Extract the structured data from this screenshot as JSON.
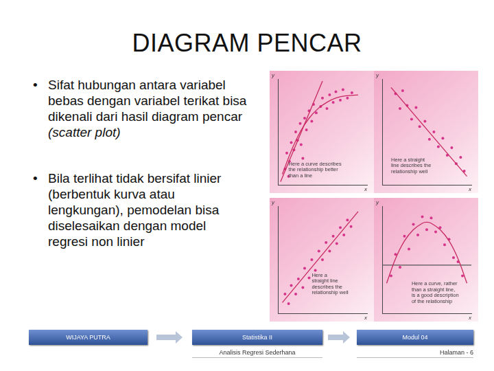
{
  "title": "DIAGRAM PENCAR",
  "bullets": [
    [
      {
        "text": "Sifat hubungan antara variabel bebas dengan variabel terikat bisa dikenali dari hasil diagram pencar ",
        "italic": false
      },
      {
        "text": "(scatter plot)",
        "italic": true
      }
    ],
    [
      {
        "text": "Bila terlihat tidak bersifat linier (berbentuk kurva atau lengkungan), pemodelan bisa diselesaikan dengan model regresi non linier",
        "italic": false
      }
    ]
  ],
  "footer": {
    "boxes": [
      "WIJAYA PUTRA",
      "Statistika II",
      "Modul 04"
    ],
    "subtitles": [
      "Analisis Regresi Sederhana",
      "Halaman - 6"
    ]
  },
  "chart_data": [
    {
      "type": "scatter",
      "xlabel": "x",
      "ylabel": "y",
      "annotation": [
        "Here a curve describes",
        "the relationship better",
        "than a line"
      ],
      "xlim": [
        0,
        10
      ],
      "ylim": [
        0,
        10
      ],
      "grid": false,
      "tick_labels": false,
      "series": [
        {
          "type": "scatter",
          "marker": "circle",
          "color": "#d6338a",
          "x": [
            0.8,
            1.0,
            1.3,
            1.5,
            1.8,
            2.0,
            2.2,
            2.5,
            2.6,
            3.0,
            3.2,
            3.5,
            3.8,
            4.0,
            4.3,
            4.8,
            5.0,
            5.5,
            5.8,
            6.2,
            6.5,
            7.0,
            7.3,
            7.8,
            8.3,
            1.2,
            2.8
          ],
          "values": [
            1.5,
            3.0,
            2.2,
            4.0,
            3.3,
            5.0,
            4.2,
            5.8,
            3.8,
            6.3,
            5.2,
            7.0,
            6.0,
            7.6,
            6.8,
            7.4,
            8.2,
            7.2,
            8.5,
            7.8,
            8.8,
            8.0,
            9.0,
            8.2,
            8.7,
            0.8,
            2.5
          ]
        },
        {
          "type": "line",
          "line_style": "solid",
          "color": "#c8285f",
          "x": [
            0.3,
            5.0
          ],
          "values": [
            0.3,
            9.8
          ]
        },
        {
          "type": "curve",
          "line_style": "solid",
          "color": "#c8285f",
          "x": [
            0.5,
            1.5,
            2.5,
            3.5,
            4.5,
            5.5,
            6.5,
            7.5,
            9.0
          ],
          "values": [
            1.0,
            3.2,
            5.0,
            6.3,
            7.2,
            7.8,
            8.2,
            8.4,
            8.5
          ]
        }
      ]
    },
    {
      "type": "scatter",
      "xlabel": "x",
      "ylabel": "y",
      "annotation": [
        "Here a straight",
        "line describes the",
        "relationship well"
      ],
      "xlim": [
        0,
        10
      ],
      "ylim": [
        0,
        10
      ],
      "grid": false,
      "tick_labels": false,
      "series": [
        {
          "type": "scatter",
          "marker": "circle",
          "color": "#d6338a",
          "x": [
            1.5,
            2.0,
            2.3,
            2.8,
            3.3,
            3.8,
            4.2,
            4.8,
            5.3,
            5.8,
            6.3,
            6.8,
            7.3,
            7.8,
            8.3,
            8.8,
            9.2
          ],
          "values": [
            8.6,
            7.2,
            8.9,
            7.5,
            6.2,
            7.3,
            5.5,
            6.0,
            4.3,
            5.0,
            3.6,
            4.4,
            2.8,
            3.5,
            2.0,
            2.6,
            1.3
          ]
        },
        {
          "type": "line",
          "line_style": "solid",
          "color": "#c8285f",
          "x": [
            1.0,
            9.5
          ],
          "values": [
            9.2,
            0.8
          ]
        }
      ]
    },
    {
      "type": "scatter",
      "xlabel": "x",
      "ylabel": "y",
      "annotation": [
        "Here a",
        "straight line",
        "describes the",
        "relationship well"
      ],
      "xlim": [
        0,
        10
      ],
      "ylim": [
        0,
        10
      ],
      "grid": false,
      "tick_labels": false,
      "series": [
        {
          "type": "scatter",
          "marker": "circle",
          "color": "#d6338a",
          "x": [
            0.8,
            1.2,
            1.5,
            2.0,
            2.3,
            2.8,
            3.0,
            3.5,
            3.8,
            4.2,
            4.6,
            5.0,
            5.4,
            5.8,
            6.2,
            6.6,
            7.0,
            7.4,
            7.8,
            8.2
          ],
          "values": [
            1.8,
            0.9,
            2.6,
            1.8,
            3.2,
            2.4,
            4.2,
            3.3,
            5.0,
            4.0,
            5.8,
            5.0,
            6.6,
            5.8,
            7.2,
            6.5,
            8.0,
            7.3,
            8.7,
            8.1
          ]
        },
        {
          "type": "line",
          "line_style": "solid",
          "color": "#c8285f",
          "x": [
            0.5,
            9.0
          ],
          "values": [
            1.0,
            9.5
          ]
        }
      ]
    },
    {
      "type": "scatter",
      "xlabel": "x",
      "ylabel": "y",
      "annotation": [
        "Here a curve, rather",
        "than a straight line,",
        "is a good description",
        "of the relationship"
      ],
      "xlim": [
        0,
        10
      ],
      "ylim": [
        0,
        10
      ],
      "grid": false,
      "tick_labels": false,
      "series": [
        {
          "type": "scatter",
          "marker": "circle",
          "color": "#d6338a",
          "x": [
            1.0,
            1.5,
            2.0,
            2.5,
            3.0,
            3.5,
            4.0,
            4.5,
            5.0,
            5.5,
            6.0,
            6.5,
            7.0,
            7.5,
            8.0,
            8.5,
            9.0
          ],
          "values": [
            3.5,
            5.5,
            4.3,
            7.2,
            6.0,
            8.3,
            7.3,
            9.0,
            7.8,
            8.9,
            7.6,
            8.0,
            6.4,
            6.9,
            5.2,
            4.8,
            3.5
          ]
        },
        {
          "type": "curve",
          "line_style": "solid",
          "color": "#c8285f",
          "x": [
            0.5,
            1.5,
            2.5,
            3.5,
            4.5,
            5.0,
            5.5,
            6.5,
            7.5,
            8.5,
            9.5
          ],
          "values": [
            2.8,
            5.1,
            6.75,
            7.8,
            8.4,
            8.5,
            8.4,
            7.8,
            6.75,
            5.1,
            2.8
          ]
        },
        {
          "type": "line",
          "line_style": "solid",
          "color": "#555555",
          "x": [
            0,
            10
          ],
          "values": [
            4.5,
            4.5
          ]
        }
      ]
    }
  ]
}
